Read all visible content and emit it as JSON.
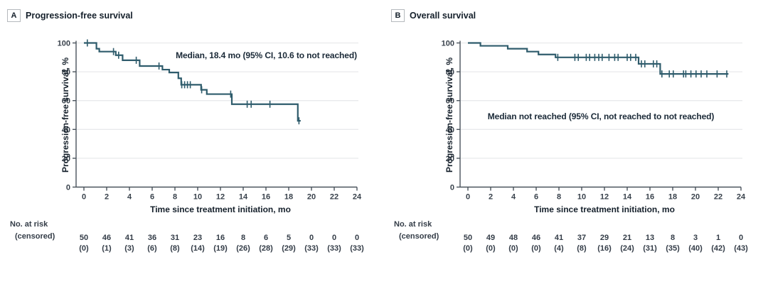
{
  "figure": {
    "background": "#ffffff",
    "risk_header_line1": "No. at risk",
    "risk_header_line2": "(censored)"
  },
  "colors": {
    "curve": "#2f5c6c",
    "grid": "#e9eaec",
    "axis": "#4a535c",
    "tick_text": "#39424c"
  },
  "chart_data": [
    {
      "type": "line",
      "subtype": "kaplan-meier-step",
      "panel_label": "A",
      "title": "Progression-free survival",
      "xlabel": "Time since treatment initiation, mo",
      "ylabel": "Progression-free survival, %",
      "annotation": "Median, 18.4 mo (95% CI, 10.6 to not reached)",
      "xlim": [
        0,
        24
      ],
      "ylim": [
        0,
        100
      ],
      "xticks": [
        0,
        2,
        4,
        6,
        8,
        10,
        12,
        14,
        16,
        18,
        20,
        22,
        24
      ],
      "yticks": [
        0,
        20,
        40,
        60,
        80,
        100
      ],
      "grid": true,
      "legend": "none",
      "start_value": 100,
      "km_steps": [
        [
          1.1,
          96
        ],
        [
          1.35,
          94
        ],
        [
          2.8,
          91.5
        ],
        [
          3.4,
          88
        ],
        [
          4.9,
          84
        ],
        [
          6.9,
          81.5
        ],
        [
          7.5,
          79.5
        ],
        [
          8.3,
          75.5
        ],
        [
          8.55,
          71
        ],
        [
          10.3,
          67.5
        ],
        [
          10.8,
          64.5
        ],
        [
          13.0,
          57.5
        ],
        [
          18.8,
          46
        ]
      ],
      "end_time": 19.05,
      "censors": [
        [
          0.3,
          100
        ],
        [
          2.6,
          94
        ],
        [
          3.05,
          91.5
        ],
        [
          4.6,
          88
        ],
        [
          6.6,
          84
        ],
        [
          8.6,
          71
        ],
        [
          8.85,
          71
        ],
        [
          9.1,
          71
        ],
        [
          9.35,
          71
        ],
        [
          10.35,
          67.5
        ],
        [
          12.9,
          64.5
        ],
        [
          14.35,
          57.5
        ],
        [
          14.7,
          57.5
        ],
        [
          16.35,
          57.5
        ],
        [
          18.9,
          46
        ]
      ],
      "risk_table": {
        "times": [
          0,
          2,
          4,
          6,
          8,
          10,
          12,
          14,
          16,
          18,
          20,
          22,
          24
        ],
        "at_risk": [
          "50",
          "46",
          "41",
          "36",
          "31",
          "23",
          "16",
          "8",
          "6",
          "5",
          "0",
          "0",
          "0"
        ],
        "censored": [
          "(0)",
          "(1)",
          "(3)",
          "(6)",
          "(8)",
          "(14)",
          "(19)",
          "(26)",
          "(28)",
          "(29)",
          "(33)",
          "(33)",
          "(33)"
        ]
      }
    },
    {
      "type": "line",
      "subtype": "kaplan-meier-step",
      "panel_label": "B",
      "title": "Overall survival",
      "xlabel": "Time since treatment initiation, mo",
      "ylabel": "Progression-free survival, %",
      "annotation": "Median not reached (95% CI, not reached to not reached)",
      "xlim": [
        0,
        24
      ],
      "ylim": [
        0,
        100
      ],
      "xticks": [
        0,
        2,
        4,
        6,
        8,
        10,
        12,
        14,
        16,
        18,
        20,
        22,
        24
      ],
      "yticks": [
        0,
        20,
        40,
        60,
        80,
        100
      ],
      "grid": true,
      "legend": "none",
      "start_value": 100,
      "km_steps": [
        [
          1.1,
          98
        ],
        [
          3.5,
          96
        ],
        [
          5.2,
          94
        ],
        [
          6.2,
          92
        ],
        [
          7.7,
          90
        ],
        [
          15.0,
          85.5
        ],
        [
          16.9,
          78.5
        ]
      ],
      "end_time": 22.9,
      "censors": [
        [
          7.9,
          90
        ],
        [
          9.4,
          90
        ],
        [
          9.7,
          90
        ],
        [
          10.4,
          90
        ],
        [
          10.7,
          90
        ],
        [
          11.15,
          90
        ],
        [
          11.5,
          90
        ],
        [
          11.8,
          90
        ],
        [
          12.4,
          90
        ],
        [
          12.9,
          90
        ],
        [
          13.2,
          90
        ],
        [
          14.0,
          90
        ],
        [
          14.3,
          90
        ],
        [
          14.75,
          90
        ],
        [
          15.25,
          85.5
        ],
        [
          15.55,
          85.5
        ],
        [
          16.3,
          85.5
        ],
        [
          16.6,
          85.5
        ],
        [
          17.05,
          78.5
        ],
        [
          17.7,
          78.5
        ],
        [
          18.05,
          78.5
        ],
        [
          18.95,
          78.5
        ],
        [
          19.15,
          78.5
        ],
        [
          19.6,
          78.5
        ],
        [
          20.05,
          78.5
        ],
        [
          20.5,
          78.5
        ],
        [
          21.0,
          78.5
        ],
        [
          21.9,
          78.5
        ],
        [
          22.75,
          78.5
        ]
      ],
      "risk_table": {
        "times": [
          0,
          2,
          4,
          6,
          8,
          10,
          12,
          14,
          16,
          18,
          20,
          22,
          24
        ],
        "at_risk": [
          "50",
          "49",
          "48",
          "46",
          "41",
          "37",
          "29",
          "21",
          "13",
          "8",
          "3",
          "1",
          "0"
        ],
        "censored": [
          "(0)",
          "(0)",
          "(0)",
          "(0)",
          "(4)",
          "(8)",
          "(16)",
          "(24)",
          "(31)",
          "(35)",
          "(40)",
          "(42)",
          "(43)"
        ]
      }
    }
  ]
}
